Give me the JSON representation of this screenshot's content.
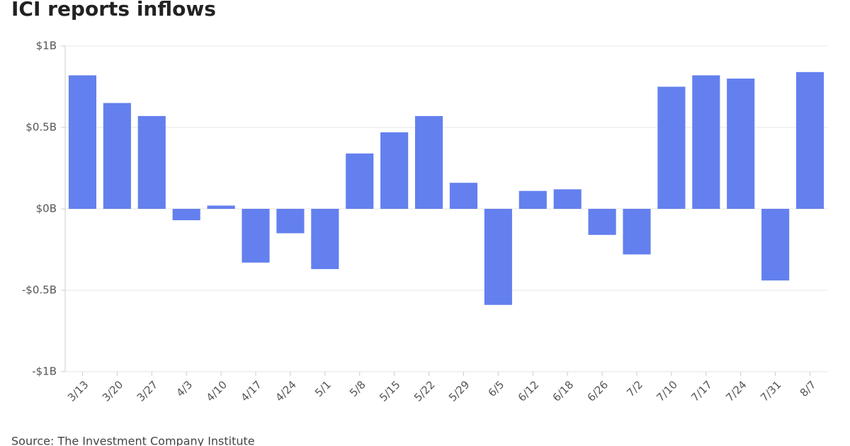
{
  "chart_data": {
    "type": "bar",
    "title": "ICI reports inflows",
    "source": "Source: The Investment Company Institute",
    "categories": [
      "3/13",
      "3/20",
      "3/27",
      "4/3",
      "4/10",
      "4/17",
      "4/24",
      "5/1",
      "5/8",
      "5/15",
      "5/22",
      "5/29",
      "6/5",
      "6/12",
      "6/18",
      "6/26",
      "7/2",
      "7/10",
      "7/17",
      "7/24",
      "7/31",
      "8/7"
    ],
    "values": [
      0.82,
      0.65,
      0.57,
      -0.07,
      0.02,
      -0.33,
      -0.15,
      -0.37,
      0.34,
      0.47,
      0.57,
      0.16,
      -0.59,
      0.11,
      0.12,
      -0.16,
      -0.28,
      0.75,
      0.82,
      0.8,
      -0.44,
      0.84
    ],
    "color": "#6380ee",
    "ylim": [
      -1,
      1
    ],
    "yticks": [
      {
        "value": -1,
        "label": "-$1B"
      },
      {
        "value": -0.5,
        "label": "-$0.5B"
      },
      {
        "value": 0,
        "label": "$0B"
      },
      {
        "value": 0.5,
        "label": "$0.5B"
      },
      {
        "value": 1,
        "label": "$1B"
      }
    ],
    "grid": true
  }
}
